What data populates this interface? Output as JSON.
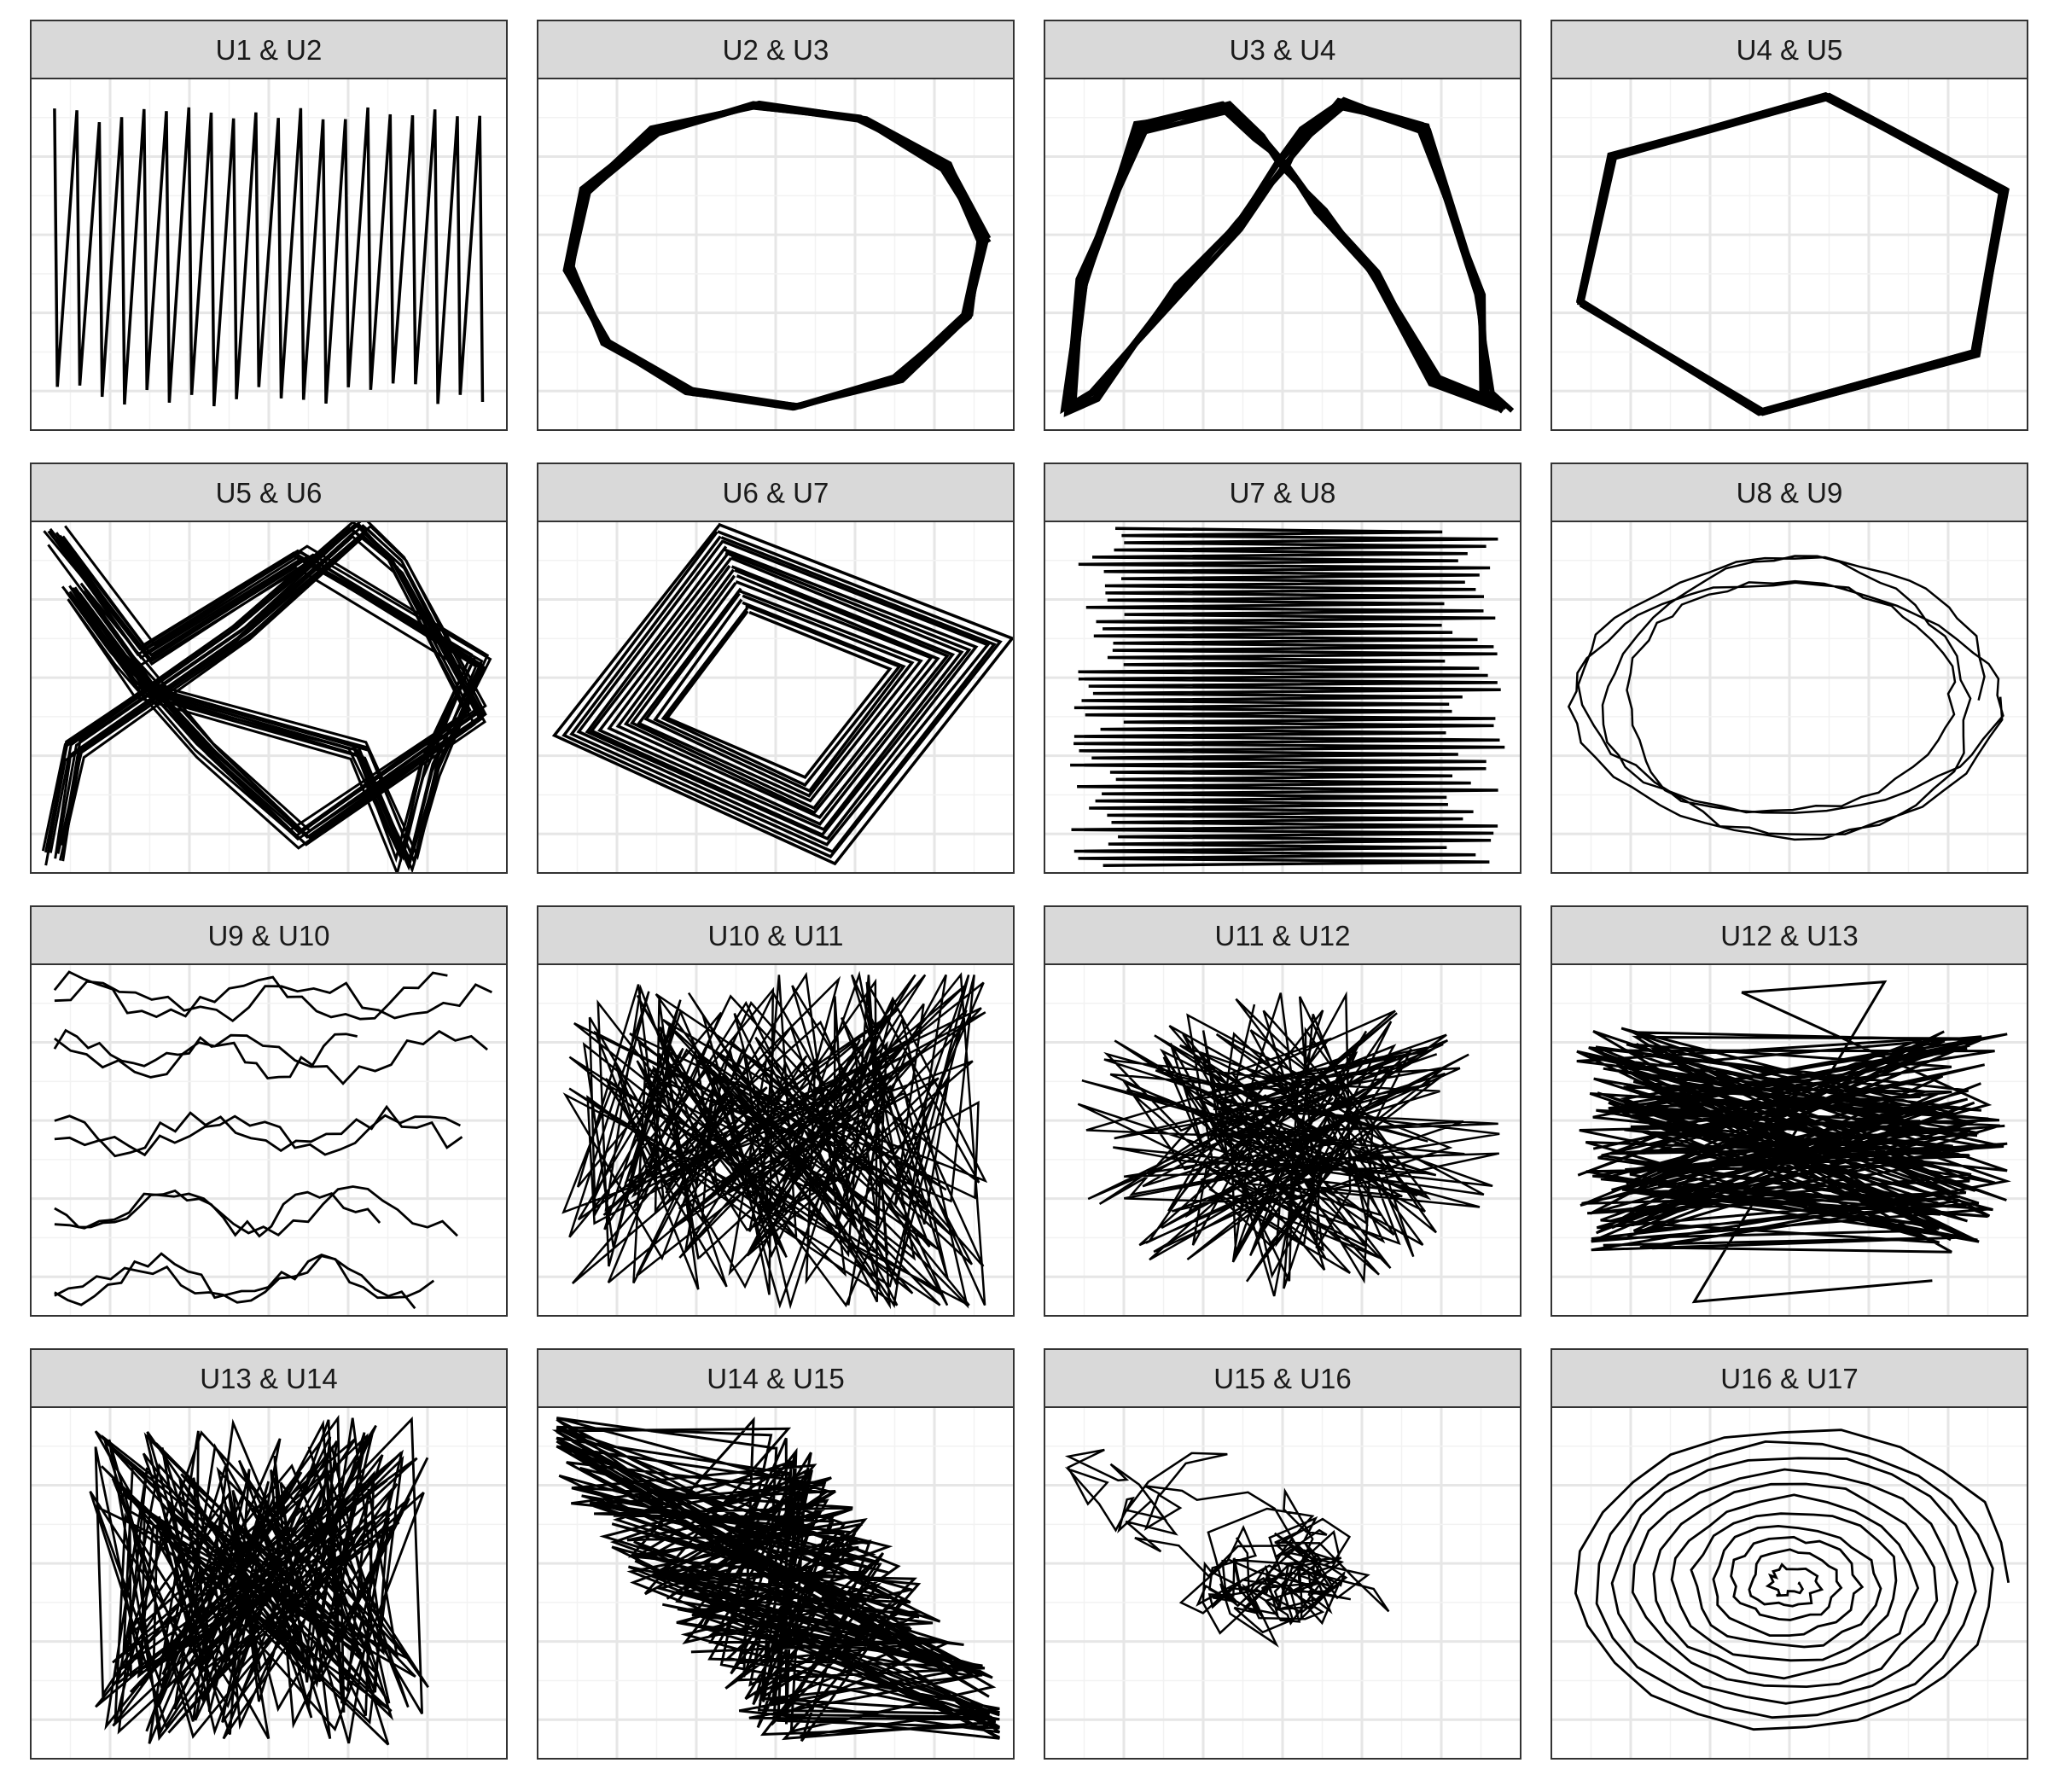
{
  "chart_data": [
    {
      "panel": "U1 & U2",
      "type": "line",
      "pattern": "sawtooth"
    },
    {
      "panel": "U2 & U3",
      "type": "line",
      "pattern": "polygon12"
    },
    {
      "panel": "U3 & U4",
      "type": "line",
      "pattern": "arch"
    },
    {
      "panel": "U4 & U5",
      "type": "line",
      "pattern": "hexagon"
    },
    {
      "panel": "U5 & U6",
      "type": "line",
      "pattern": "fish"
    },
    {
      "panel": "U6 & U7",
      "type": "line",
      "pattern": "diamond"
    },
    {
      "panel": "U7 & U8",
      "type": "line",
      "pattern": "hzigzag"
    },
    {
      "panel": "U8 & U9",
      "type": "line",
      "pattern": "ellipse_loops"
    },
    {
      "panel": "U9 & U10",
      "type": "line",
      "pattern": "wavy_bands"
    },
    {
      "panel": "U10 & U11",
      "type": "line",
      "pattern": "vertical_noise"
    },
    {
      "panel": "U11 & U12",
      "type": "line",
      "pattern": "radial_burst"
    },
    {
      "panel": "U12 & U13",
      "type": "line",
      "pattern": "horizontal_band"
    },
    {
      "panel": "U13 & U14",
      "type": "line",
      "pattern": "vertical_band"
    },
    {
      "panel": "U14 & U15",
      "type": "line",
      "pattern": "diagonal_band"
    },
    {
      "panel": "U15 & U16",
      "type": "line",
      "pattern": "random_walk"
    },
    {
      "panel": "U16 & U17",
      "type": "line",
      "pattern": "spiral"
    }
  ]
}
